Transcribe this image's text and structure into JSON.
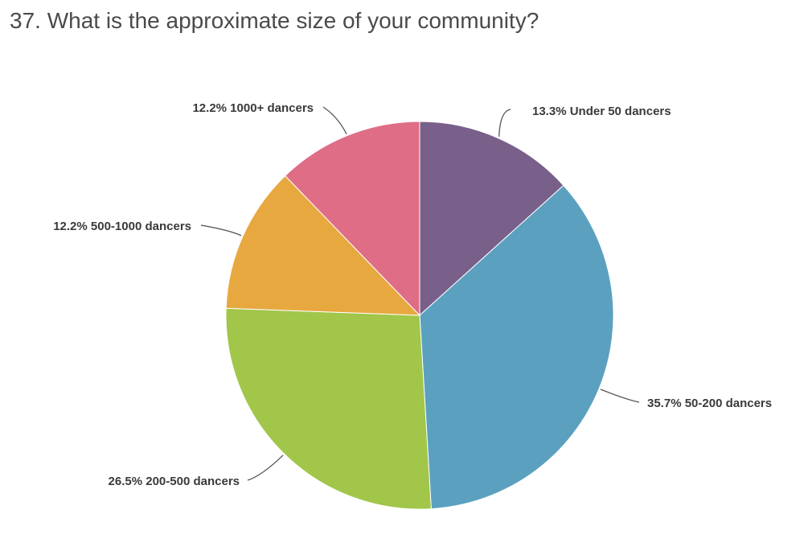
{
  "chart_data": {
    "type": "pie",
    "title": "37. What is the approximate size of your community?",
    "slices": [
      {
        "label": "Under 50 dancers",
        "value": 13.3,
        "value_label": "13.3%",
        "color": "#78608a"
      },
      {
        "label": "50-200 dancers",
        "value": 35.7,
        "value_label": "35.7%",
        "color": "#5ba1bf"
      },
      {
        "label": "200-500 dancers",
        "value": 26.5,
        "value_label": "26.5%",
        "color": "#a1c64a"
      },
      {
        "label": "500-1000 dancers",
        "value": 12.2,
        "value_label": "12.2%",
        "color": "#e8a840"
      },
      {
        "label": "1000+ dancers",
        "value": 12.2,
        "value_label": "12.2%",
        "color": "#df6d86"
      }
    ],
    "start": "12 o'clock",
    "direction": "clockwise",
    "legend": "none"
  }
}
